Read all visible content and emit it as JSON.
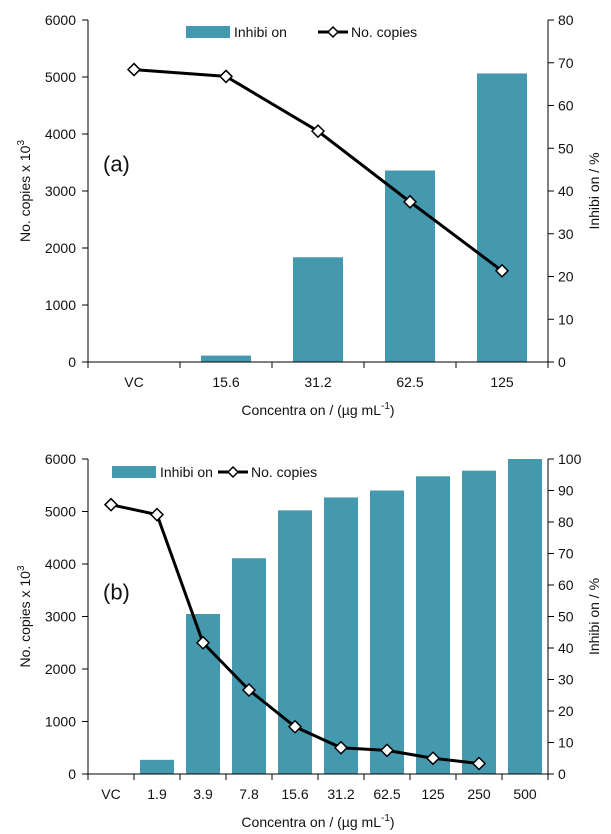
{
  "colors": {
    "bar": "#4599AF",
    "line": "#000000",
    "axis": "#000000"
  },
  "chart_data": [
    {
      "type": "bar+line",
      "panel_label": "(a)",
      "categories": [
        "VC",
        "15.6",
        "31.2",
        "62.5",
        "125"
      ],
      "xlabel": "Concentra on / (µg mL",
      "xlabel_sup": "-1",
      "xlabel_close": ")",
      "ylabel": "No. copies x 10",
      "ylabel_sup": "3",
      "y2label": "Inhibi on / %",
      "ylim": [
        0,
        6000
      ],
      "y_ticks": [
        "0",
        "1000",
        "2000",
        "3000",
        "4000",
        "5000",
        "6000"
      ],
      "y2lim": [
        0,
        80
      ],
      "y2_ticks": [
        "0",
        "10",
        "20",
        "30",
        "40",
        "50",
        "60",
        "70",
        "80"
      ],
      "legend_placement": "top",
      "series": [
        {
          "name": "Inhibi on",
          "kind": "bar",
          "axis": "right",
          "values": [
            null,
            1.5,
            24.5,
            44.8,
            67.5
          ]
        },
        {
          "name": "No. copies",
          "kind": "line",
          "axis": "left",
          "marker": "diamond-open",
          "values": [
            5130,
            5010,
            4050,
            2810,
            1600
          ]
        }
      ]
    },
    {
      "type": "bar+line",
      "panel_label": "(b)",
      "categories": [
        "VC",
        "1.9",
        "3.9",
        "7.8",
        "15.6",
        "31.2",
        "62.5",
        "125",
        "250",
        "500"
      ],
      "xlabel": "Concentra on / (µg mL",
      "xlabel_sup": "-1",
      "xlabel_close": ")",
      "ylabel": "No. copies x 10",
      "ylabel_sup": "3",
      "y2label": "Inhibi on / %",
      "ylim": [
        0,
        6000
      ],
      "y_ticks": [
        "0",
        "1000",
        "2000",
        "3000",
        "4000",
        "5000",
        "6000"
      ],
      "y2lim": [
        0,
        100
      ],
      "y2_ticks": [
        "0",
        "10",
        "20",
        "30",
        "40",
        "50",
        "60",
        "70",
        "80",
        "90",
        "100"
      ],
      "legend_placement": "top-left",
      "series": [
        {
          "name": "Inhibi on",
          "kind": "bar",
          "axis": "right",
          "values": [
            null,
            4.5,
            50.8,
            68.5,
            83.7,
            87.8,
            90.0,
            94.5,
            96.3,
            100.0
          ]
        },
        {
          "name": "No. copies",
          "kind": "line",
          "axis": "left",
          "marker": "diamond-open",
          "values": [
            5130,
            4940,
            2500,
            1600,
            900,
            500,
            450,
            300,
            200,
            null
          ]
        }
      ]
    }
  ]
}
